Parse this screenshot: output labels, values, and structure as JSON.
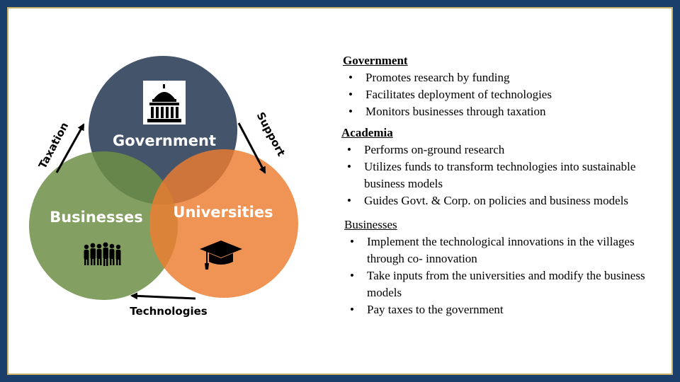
{
  "diagram": {
    "circles": {
      "government": {
        "label": "Government",
        "color": "#44546a",
        "icon": "capitol-building-icon"
      },
      "businesses": {
        "label": "Businesses",
        "color": "#6d8f47",
        "icon": "people-group-icon"
      },
      "universities": {
        "label": "Universities",
        "color": "#ed7d31",
        "icon": "graduation-cap-icon"
      }
    },
    "arrows": {
      "taxation": "Taxation",
      "support": "Support",
      "technologies": "Technologies"
    }
  },
  "sections": [
    {
      "title": "Government",
      "bold": true,
      "items": [
        "Promotes research by funding",
        "Facilitates deployment of technologies",
        "Monitors businesses through taxation"
      ]
    },
    {
      "title": "Academia",
      "bold": true,
      "items": [
        "Performs on-ground research",
        "Utilizes funds to transform technologies into sustainable business models",
        "Guides Govt. & Corp. on policies and business models"
      ]
    },
    {
      "title": "Businesses",
      "bold": false,
      "items": [
        "Implement the technological innovations in the villages through co- innovation",
        "Take inputs from the universities and modify the business models",
        "Pay taxes to the government"
      ]
    }
  ]
}
